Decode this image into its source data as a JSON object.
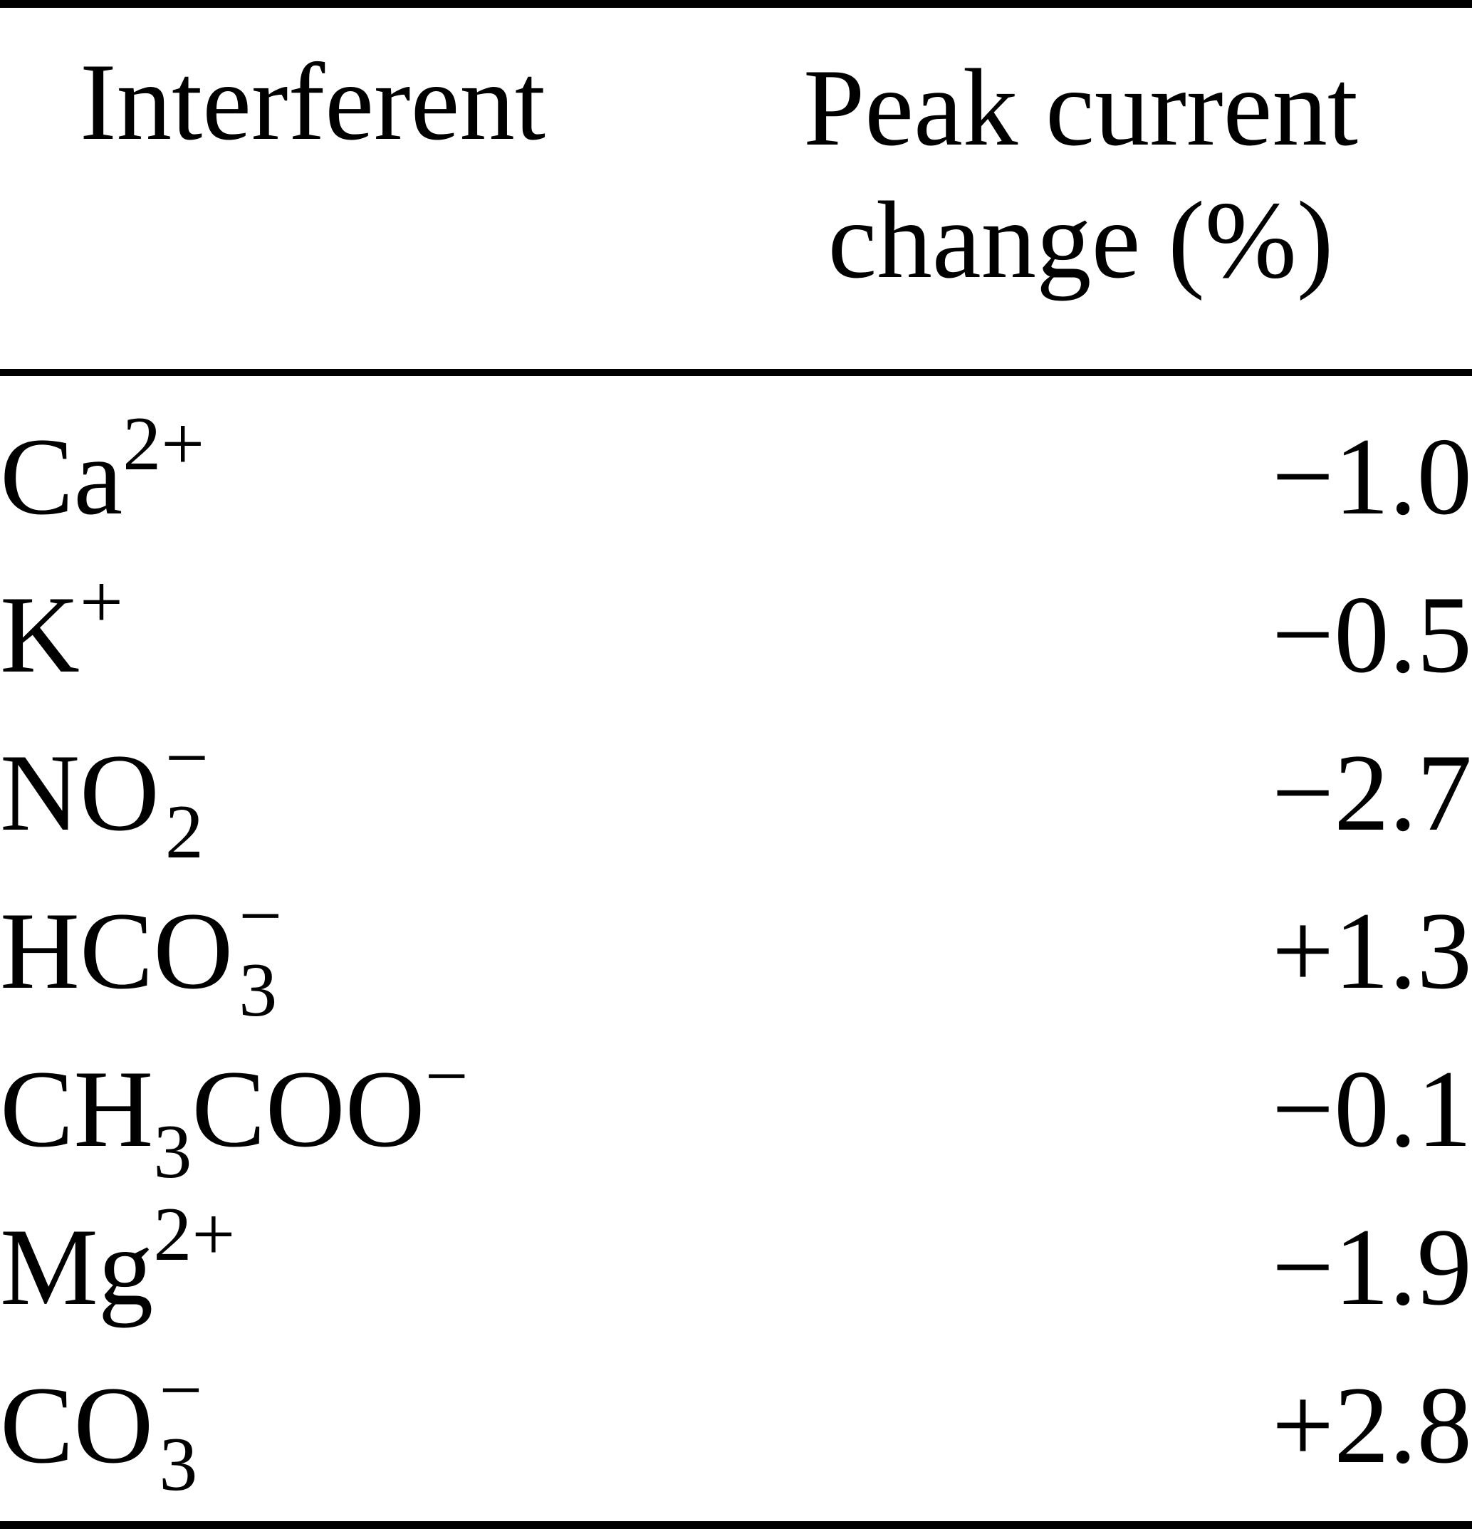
{
  "page": {
    "background": "#ffffff",
    "text_color": "#000000",
    "rule_color": "#000000"
  },
  "table": {
    "header": {
      "col_interferent": "Interferent",
      "col_value_line1": "Peak current",
      "col_value_line2": "change (%)"
    },
    "rows": [
      {
        "label_text": "Ca2+",
        "segments": [
          {
            "type": "text",
            "v": "Ca"
          },
          {
            "type": "sup",
            "v": "2+"
          }
        ],
        "value": "−1.0"
      },
      {
        "label_text": "K+",
        "segments": [
          {
            "type": "text",
            "v": "K"
          },
          {
            "type": "sup",
            "v": "+"
          }
        ],
        "value": "−0.5"
      },
      {
        "label_text": "NO2−",
        "segments": [
          {
            "type": "text",
            "v": "NO"
          },
          {
            "type": "stack",
            "sup": "−",
            "sub": "2"
          }
        ],
        "value": "−2.7"
      },
      {
        "label_text": "HCO3−",
        "segments": [
          {
            "type": "text",
            "v": "HCO"
          },
          {
            "type": "stack",
            "sup": "−",
            "sub": "3"
          }
        ],
        "value": "+1.3"
      },
      {
        "label_text": "CH3COO−",
        "segments": [
          {
            "type": "text",
            "v": "CH"
          },
          {
            "type": "sub",
            "v": "3"
          },
          {
            "type": "text",
            "v": "COO"
          },
          {
            "type": "sup",
            "v": "−"
          }
        ],
        "value": "−0.1"
      },
      {
        "label_text": "Mg2+",
        "segments": [
          {
            "type": "text",
            "v": "Mg"
          },
          {
            "type": "sup",
            "v": "2+"
          }
        ],
        "value": "−1.9"
      },
      {
        "label_text": "CO3−",
        "segments": [
          {
            "type": "text",
            "v": "CO"
          },
          {
            "type": "stack",
            "sup": "−",
            "sub": "3"
          }
        ],
        "value": "+2.8"
      }
    ]
  }
}
